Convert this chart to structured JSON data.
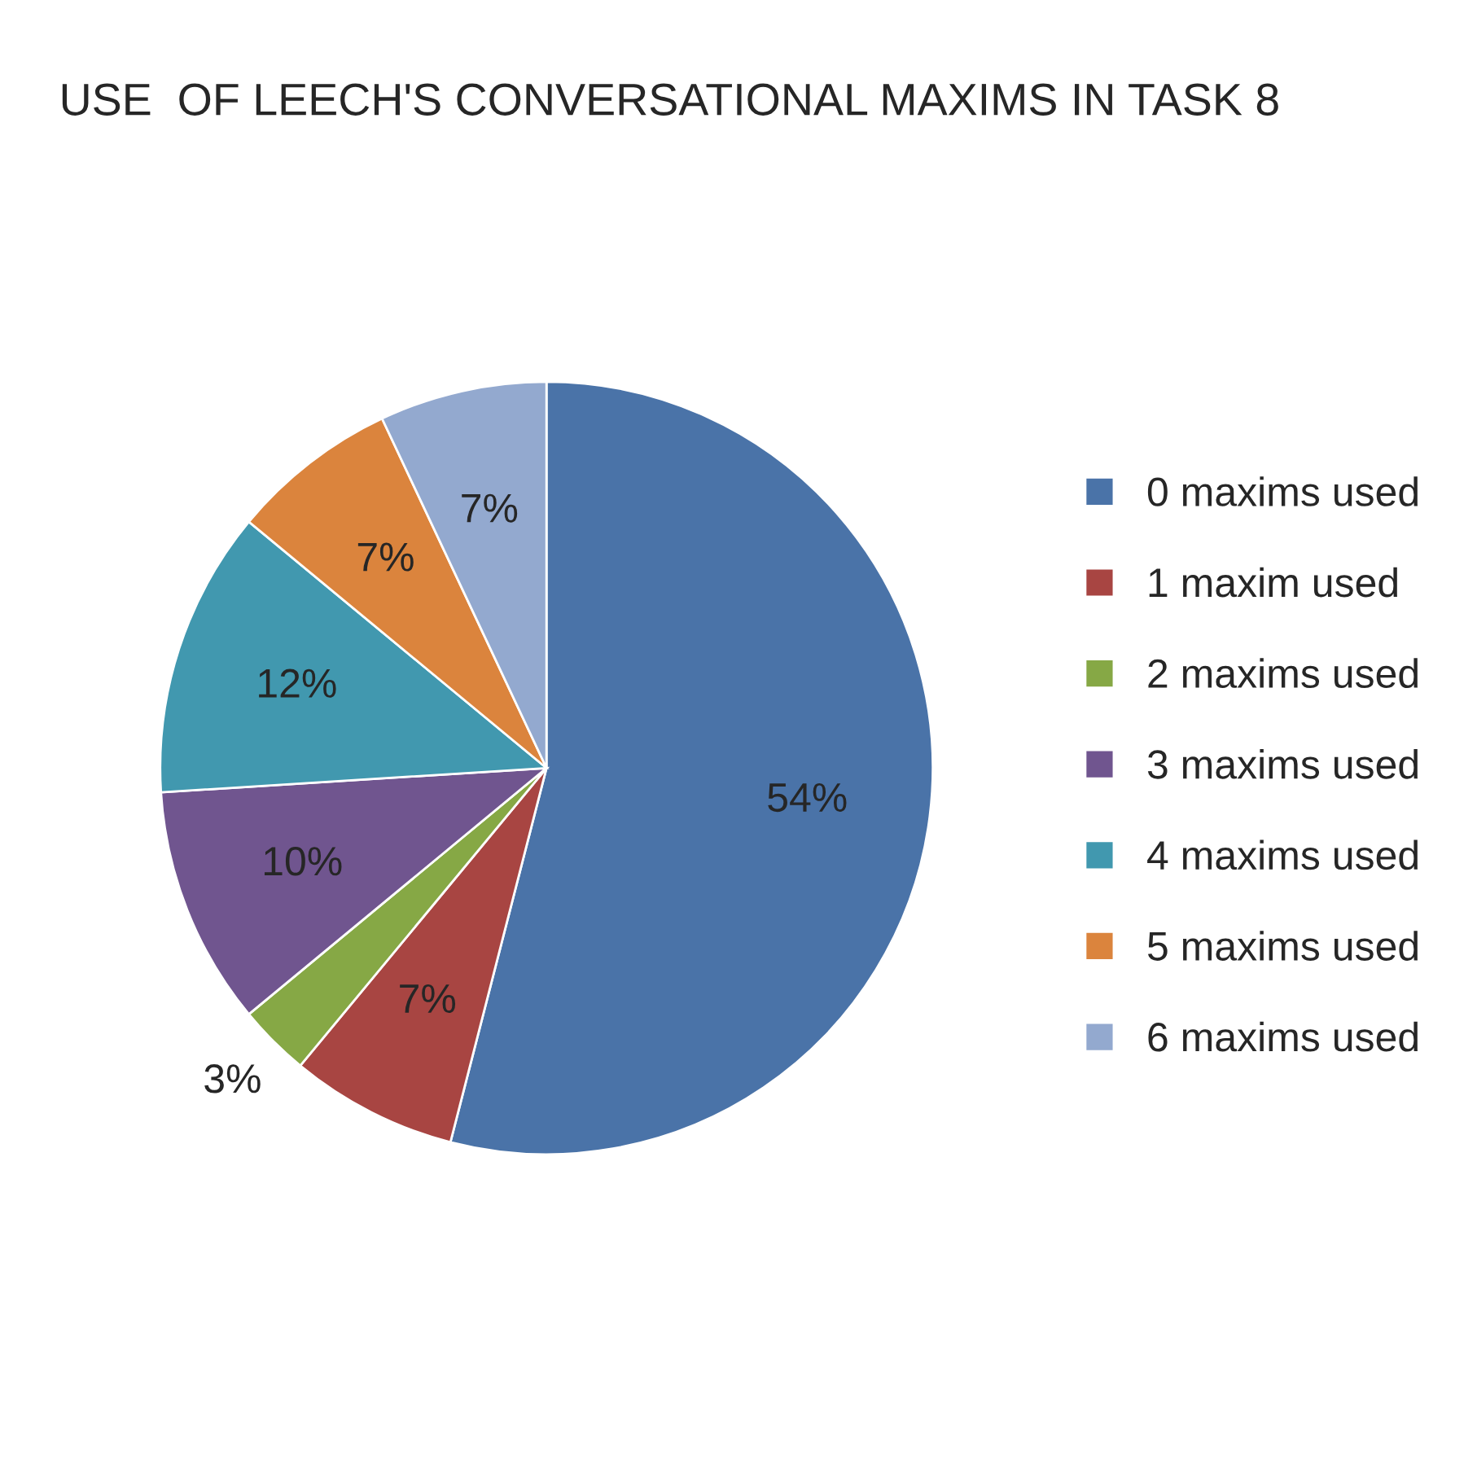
{
  "chart_data": {
    "type": "pie",
    "title": "USE  OF LEECH'S CONVERSATIONAL MAXIMS IN TASK 8",
    "categories": [
      "0 maxims used",
      "1 maxim used",
      "2 maxims used",
      "3 maxims used",
      "4 maxims used",
      "5 maxims used",
      "6 maxims used"
    ],
    "values": [
      54,
      7,
      3,
      10,
      12,
      7,
      7
    ],
    "value_labels": [
      "54%",
      "7%",
      "3%",
      "10%",
      "12%",
      "7%",
      "7%"
    ],
    "colors": [
      "#4a73a8",
      "#a84542",
      "#86a845",
      "#70558f",
      "#4198af",
      "#db843d",
      "#93a9cf"
    ],
    "legend": "right"
  }
}
